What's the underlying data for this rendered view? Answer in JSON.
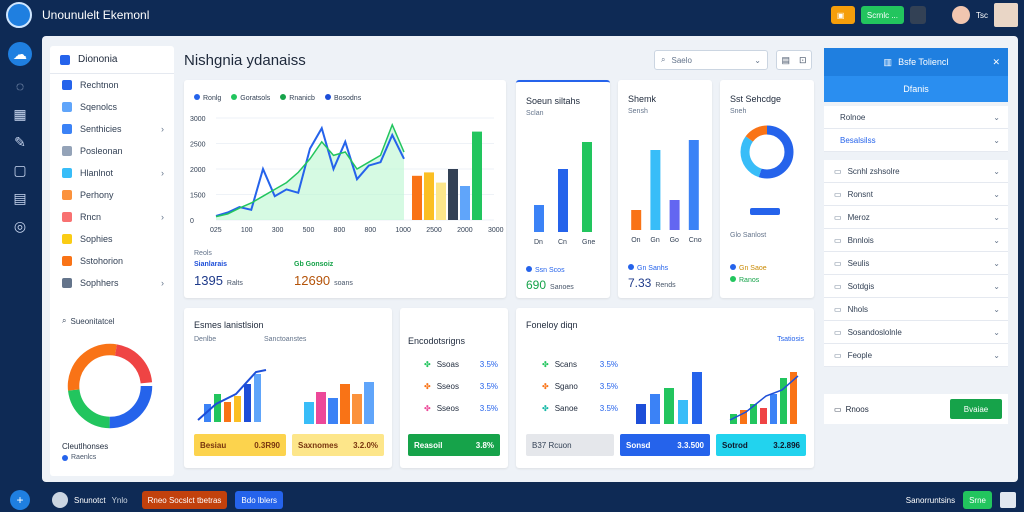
{
  "topbar": {
    "title": "Unounulelt Ekemonl",
    "btn_orange": "",
    "btn_green": "Scrnlc ...",
    "btn_green_extra": "",
    "user_label": "Tsc"
  },
  "rail": {
    "icons": [
      "cloud-icon",
      "chat-icon",
      "grid-icon",
      "tag-icon",
      "file-icon",
      "document-icon",
      "settings-icon"
    ]
  },
  "sidebar": {
    "header": "Diononia",
    "items": [
      {
        "label": "Rechtnon",
        "color": "#2563eb",
        "chevron": false
      },
      {
        "label": "Sqenolcs",
        "color": "#60a5fa",
        "chevron": false
      },
      {
        "label": "Senthicies",
        "color": "#3b82f6",
        "chevron": true
      },
      {
        "label": "Posleonan",
        "color": "#94a3b8",
        "chevron": false
      },
      {
        "label": "Hlanlnot",
        "color": "#38bdf8",
        "chevron": true
      },
      {
        "label": "Perhony",
        "color": "#fb923c",
        "chevron": false
      },
      {
        "label": "Rncn",
        "color": "#f87171",
        "chevron": true
      },
      {
        "label": "Sophies",
        "color": "#facc15",
        "chevron": false
      },
      {
        "label": "Sstohorion",
        "color": "#f97316",
        "chevron": false
      },
      {
        "label": "Sophhers",
        "color": "#64748b",
        "chevron": true
      }
    ],
    "search_label": "Sueonitatcel",
    "bottom_label": "Cleutlhonses",
    "bottom_sub": "Raenlcs"
  },
  "page": {
    "title": "Nishgnia ydanaiss",
    "search_placeholder": "Saelo"
  },
  "card_main": {
    "legend": [
      "Ronlg",
      "Goratsols",
      "Rnanicb",
      "Bosodns"
    ],
    "legend_colors": [
      "#2563eb",
      "#22c55e",
      "#16a34a",
      "#1d4ed8"
    ],
    "stat_label_1": "Reols",
    "stat_sub_1": "Sianlarais",
    "stat_value_1": "1395",
    "stat_unit_1": "Ralts",
    "stat_label_2": "Gb Gonsoiz",
    "stat_value_2": "12690",
    "stat_unit_2": "soans"
  },
  "card_b": {
    "title": "Soeun siltahs",
    "label": "Sclan",
    "stat_label": "Ssn Scos",
    "stat_value": "690",
    "stat_unit": "Sanoes"
  },
  "card_c": {
    "title": "Shemk",
    "label": "Sensh",
    "stat_label": "Gn Sanhs",
    "stat_value": "7.33",
    "stat_unit": "Rends"
  },
  "card_d": {
    "title": "Sst Sehcdge",
    "label": "Sneh",
    "sub": "Glo Sanlost",
    "stat_label": "Gn Saoe",
    "stat_sub": "Ranos"
  },
  "card_e": {
    "title": "Esmes lanistlsion",
    "sub1": "Denlbe",
    "sub2": "Sanctoanstes",
    "btn_yellow_label": "Besiau",
    "btn_yellow_value": "0.3R90",
    "btn_yellow2_label": "Saxnomes",
    "btn_yellow2_value": "3.2.0%"
  },
  "card_f": {
    "title": "Encodotsrigns",
    "rows": [
      {
        "label": "Ssoas",
        "value": "3.5%",
        "color": "#22c55e"
      },
      {
        "label": "Sseos",
        "value": "3.5%",
        "color": "#f97316"
      },
      {
        "label": "Sseos",
        "value": "3.5%",
        "color": "#ec4899"
      }
    ],
    "btn_label": "Reasoil",
    "btn_value": "3.8%"
  },
  "card_g": {
    "title": "Foneloy diqn",
    "link": "Tsatiosis",
    "rows": [
      {
        "label": "Scans",
        "value": "3.5%",
        "color": "#22c55e"
      },
      {
        "label": "Sgano",
        "value": "3.5%",
        "color": "#f97316"
      },
      {
        "label": "Sanoe",
        "value": "3.5%",
        "color": "#14b8a6"
      }
    ],
    "btn1_label": "B37 Rcuon",
    "btn2_label": "Sonsd",
    "btn2_value": "3.3.500",
    "btn3_label": "Sotrod",
    "btn3_value": "3.2.896"
  },
  "rpanel": {
    "head": "Bsfe Toliencl",
    "head2": "Dfanis",
    "rows": [
      "Rolnoe",
      "Besalsilss",
      "Scnhl zshsolre",
      "Ronsnt",
      "Meroz",
      "Bnnlois",
      "Seulis",
      "Sotdgis",
      "Nhols",
      "Sosandoslolnle",
      "Feople"
    ],
    "footer_left": "Rnoos",
    "footer_btn": "Bvaiae"
  },
  "botbar": {
    "user": "Snunotct",
    "user_sub": "Ynlo",
    "btn1": "Rneo Socslct tbetras",
    "btn2": "Bdo lblers",
    "right_label": "Sanorruntsins",
    "right_btn": "Srne"
  },
  "chart_data": [
    {
      "type": "line",
      "x": [
        "0",
        "100",
        "300",
        "500",
        "800",
        "800",
        "1000",
        "400",
        "2000",
        "3000",
        "2000",
        "2000",
        "1000",
        "2000",
        "5000",
        "3000",
        "2000"
      ],
      "y_tick_labels": [
        "3000",
        "2500",
        "2000",
        "1500",
        "0"
      ],
      "x_tick_labels": [
        "025",
        "100",
        "300",
        "500",
        "800",
        "800",
        "1000",
        "2500",
        "2000",
        "3000"
      ],
      "series": [
        {
          "color": "#2563eb",
          "values": [
            120,
            220,
            380,
            300,
            1500,
            700,
            900,
            800,
            2100,
            2700,
            1500,
            2300,
            1200,
            1600,
            1700,
            2500,
            1800
          ]
        },
        {
          "color": "#22c55e",
          "values": [
            100,
            180,
            350,
            500,
            700,
            900,
            1100,
            1400,
            1800,
            2300,
            1900,
            2000,
            1500,
            1700,
            1900,
            2800,
            2000
          ]
        }
      ],
      "bars": [
        {
          "value": 1300,
          "color": "#f97316"
        },
        {
          "value": 1400,
          "color": "#fbbf24"
        },
        {
          "value": 1100,
          "color": "#fde68a"
        },
        {
          "value": 1500,
          "color": "#334155"
        },
        {
          "value": 1000,
          "color": "#60a5fa"
        },
        {
          "value": 2600,
          "color": "#22c55e"
        }
      ],
      "ylim": [
        0,
        3000
      ]
    },
    {
      "type": "bar",
      "categories": [
        "Dn",
        "Cn",
        "Gne"
      ],
      "values": [
        30,
        70,
        100
      ],
      "colors": [
        "#3b82f6",
        "#2563eb",
        "#22c55e"
      ]
    },
    {
      "type": "bar",
      "categories": [
        "On",
        "Gn",
        "Go",
        "Cno"
      ],
      "values": [
        20,
        80,
        30,
        90
      ],
      "colors": [
        "#f97316",
        "#38bdf8",
        "#6366f1",
        "#3b82f6"
      ]
    },
    {
      "type": "pie",
      "values": [
        55,
        30,
        15
      ],
      "colors": [
        "#2563eb",
        "#38bdf8",
        "#f97316"
      ]
    }
  ]
}
